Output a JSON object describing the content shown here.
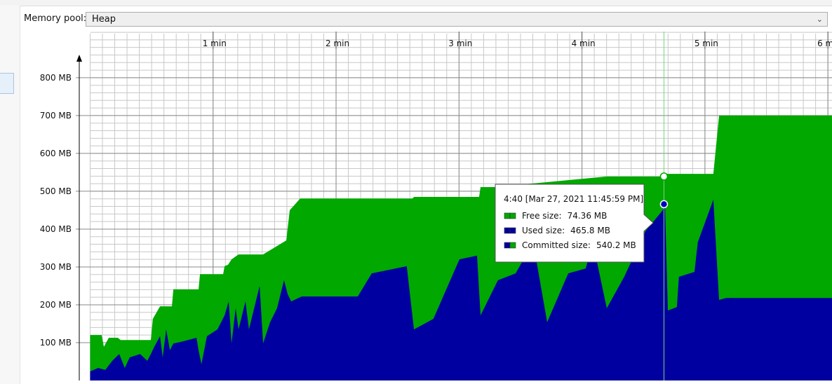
{
  "toolbar": {
    "label": "Memory pool:",
    "selected": "Heap"
  },
  "chart_data": {
    "type": "area",
    "xlim": [
      0,
      362
    ],
    "ylim": [
      0,
      922
    ],
    "xticks": [
      {
        "value": 60,
        "label": "1 min"
      },
      {
        "value": 120,
        "label": "2 min"
      },
      {
        "value": 180,
        "label": "3 min"
      },
      {
        "value": 240,
        "label": "4 min"
      },
      {
        "value": 300,
        "label": "5 min"
      },
      {
        "value": 360,
        "label": "6 min"
      }
    ],
    "yticks": [
      {
        "value": 100,
        "label": "100 MB"
      },
      {
        "value": 200,
        "label": "200 MB"
      },
      {
        "value": 300,
        "label": "300 MB"
      },
      {
        "value": 400,
        "label": "400 MB"
      },
      {
        "value": 500,
        "label": "500 MB"
      },
      {
        "value": 600,
        "label": "600 MB"
      },
      {
        "value": 700,
        "label": "700 MB"
      },
      {
        "value": 800,
        "label": "800 MB"
      }
    ],
    "grid": true,
    "series": [
      {
        "name": "Committed size:",
        "color": "#00a800",
        "x": [
          0,
          5.6,
          6.7,
          9.1,
          13.5,
          14.9,
          22.8,
          29.6,
          30.6,
          34.1,
          39.9,
          40.6,
          52.9,
          53.6,
          64.9,
          65.6,
          67.3,
          69.0,
          72.4,
          84.4,
          95.7,
          97.4,
          102.5,
          157.3,
          158.0,
          189.8,
          190.5,
          197.3,
          252.1,
          280.5,
          281.2,
          304.1,
          306.9,
          362
        ],
        "values": [
          120,
          120,
          89,
          113,
          113,
          107,
          107,
          107,
          163,
          196,
          196,
          241,
          241,
          281,
          281,
          302,
          306,
          320,
          333,
          333,
          370,
          450,
          481,
          481,
          485,
          485,
          511,
          511,
          539,
          539,
          546,
          546,
          700,
          700
        ]
      },
      {
        "name": "Used size:",
        "color": "#0000a0",
        "x": [
          0,
          3.9,
          7.4,
          10.8,
          14.2,
          16.9,
          19.3,
          24.4,
          27.9,
          29.6,
          31.3,
          34.1,
          35.4,
          37.1,
          38.9,
          40.6,
          44.3,
          51.9,
          52.9,
          54.3,
          57.0,
          62.1,
          65.6,
          67.6,
          69.0,
          71.0,
          72.4,
          75.8,
          77.5,
          82.7,
          84.4,
          87.8,
          91.2,
          94.6,
          96.4,
          98.1,
          103.2,
          130.6,
          137.4,
          154.5,
          158.0,
          167.5,
          180.2,
          188.8,
          190.5,
          199.0,
          207.6,
          216.2,
          223.0,
          233.3,
          241.8,
          245.3,
          252.1,
          260.6,
          270.9,
          279.4,
          280.5,
          281.9,
          286.3,
          287.3,
          294.9,
          296.5,
          304.1,
          306.9,
          310.3,
          362
        ],
        "values": [
          24,
          33,
          28,
          52,
          70,
          33,
          61,
          70,
          52,
          70,
          89,
          117,
          61,
          135,
          80,
          98,
          102,
          113,
          80,
          43,
          117,
          135,
          172,
          209,
          98,
          191,
          135,
          209,
          135,
          250,
          98,
          154,
          191,
          265,
          228,
          209,
          222,
          222,
          283,
          302,
          135,
          163,
          320,
          330,
          172,
          265,
          283,
          365,
          154,
          283,
          296,
          365,
          191,
          274,
          394,
          450,
          465.8,
          185,
          194,
          274,
          287,
          365,
          478,
          213,
          218,
          218
        ]
      }
    ],
    "cursor_x": 280,
    "tooltip": {
      "title": "4:40 [Mar 27, 2021 11:45:59 PM]",
      "rows": [
        {
          "label": "Free size:",
          "value": "74.36 MB"
        },
        {
          "label": "Used size:",
          "value": "465.8 MB"
        },
        {
          "label": "Committed size:",
          "value": "540.2 MB"
        }
      ]
    }
  }
}
